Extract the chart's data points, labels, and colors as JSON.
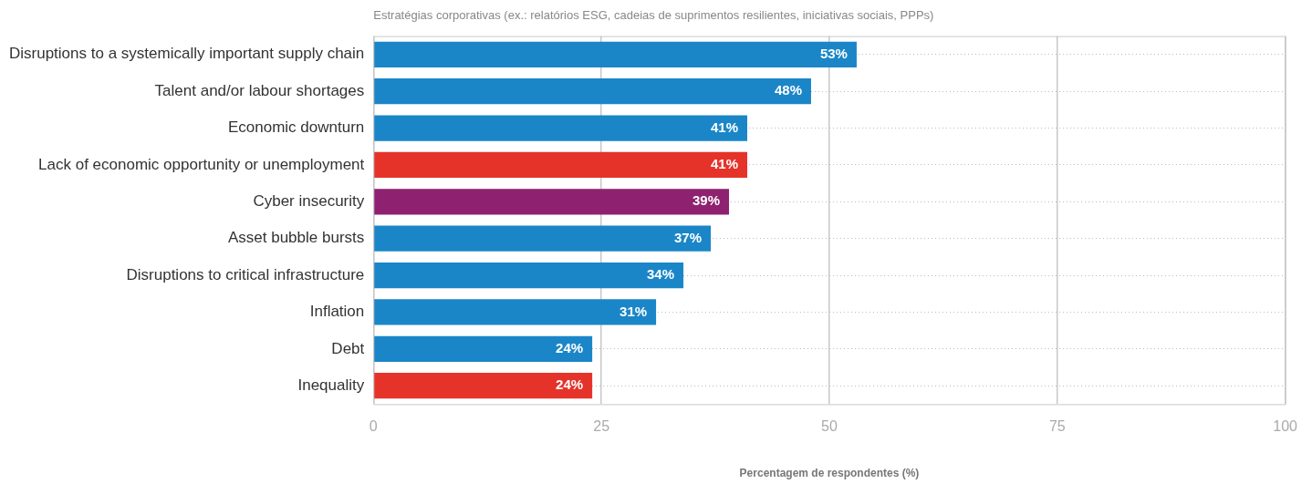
{
  "chart_data": {
    "type": "bar",
    "orientation": "horizontal",
    "title": "Estratégias corporativas (ex.: relatórios ESG, cadeias de suprimentos resilientes, iniciativas sociais, PPPs)",
    "xlabel": "Percentagem de respondentes (%)",
    "categories": [
      "Disruptions to a systemically important supply chain",
      "Talent and/or labour shortages",
      "Economic downturn",
      "Lack of economic opportunity or unemployment",
      "Cyber insecurity",
      "Asset bubble bursts",
      "Disruptions to critical infrastructure",
      "Inflation",
      "Debt",
      "Inequality"
    ],
    "values": [
      53,
      48,
      41,
      41,
      39,
      37,
      34,
      31,
      24,
      24
    ],
    "value_labels": [
      "53%",
      "48%",
      "41%",
      "41%",
      "39%",
      "37%",
      "34%",
      "31%",
      "24%",
      "24%"
    ],
    "colors": [
      "#1a86c8",
      "#1a86c8",
      "#1a86c8",
      "#e5332a",
      "#8e2270",
      "#1a86c8",
      "#1a86c8",
      "#1a86c8",
      "#1a86c8",
      "#e5332a"
    ],
    "xlim": [
      0,
      100
    ],
    "xticks": [
      0,
      25,
      50,
      75,
      100
    ],
    "grid": true,
    "legend": false
  }
}
